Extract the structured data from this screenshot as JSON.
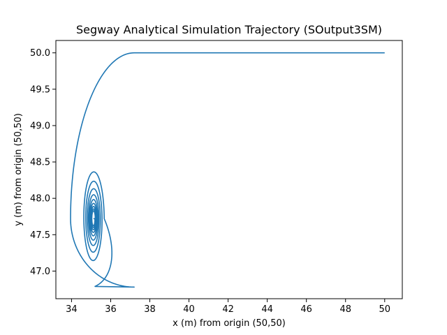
{
  "chart_data": {
    "type": "line",
    "title": "Segway Analytical Simulation Trajectory (SOutput3SM)",
    "xlabel": "x (m) from origin (50,50)",
    "ylabel": "y (m) from origin (50,50)",
    "xlim": [
      33.2,
      50.9
    ],
    "ylim": [
      46.62,
      50.17
    ],
    "xticks": [
      34,
      36,
      38,
      40,
      42,
      44,
      46,
      48,
      50
    ],
    "yticks": [
      47.0,
      47.5,
      48.0,
      48.5,
      49.0,
      49.5,
      50.0
    ],
    "xtick_labels": [
      "34",
      "36",
      "38",
      "40",
      "42",
      "44",
      "46",
      "48",
      "50"
    ],
    "ytick_labels": [
      "47.0",
      "47.5",
      "48.0",
      "48.5",
      "49.0",
      "49.5",
      "50.0"
    ],
    "grid": false,
    "legend": "none",
    "series": [
      {
        "color": "#1f77b4",
        "trajectory": {
          "start_x": 50.0,
          "straight_end_x": 37.2,
          "straight_y": 50.0,
          "center_x": 35.12,
          "center_y": 47.72,
          "first_left_x": 33.95,
          "first_bottom_y": 46.78,
          "outer_spiral_rx": 0.55,
          "outer_spiral_ry": 0.68,
          "outer_spiral_top_y": 48.4,
          "spiral_decay_per_turn": 0.8,
          "spiral_turns": 9,
          "end_x": 35.12,
          "end_y": 47.72
        }
      }
    ]
  }
}
